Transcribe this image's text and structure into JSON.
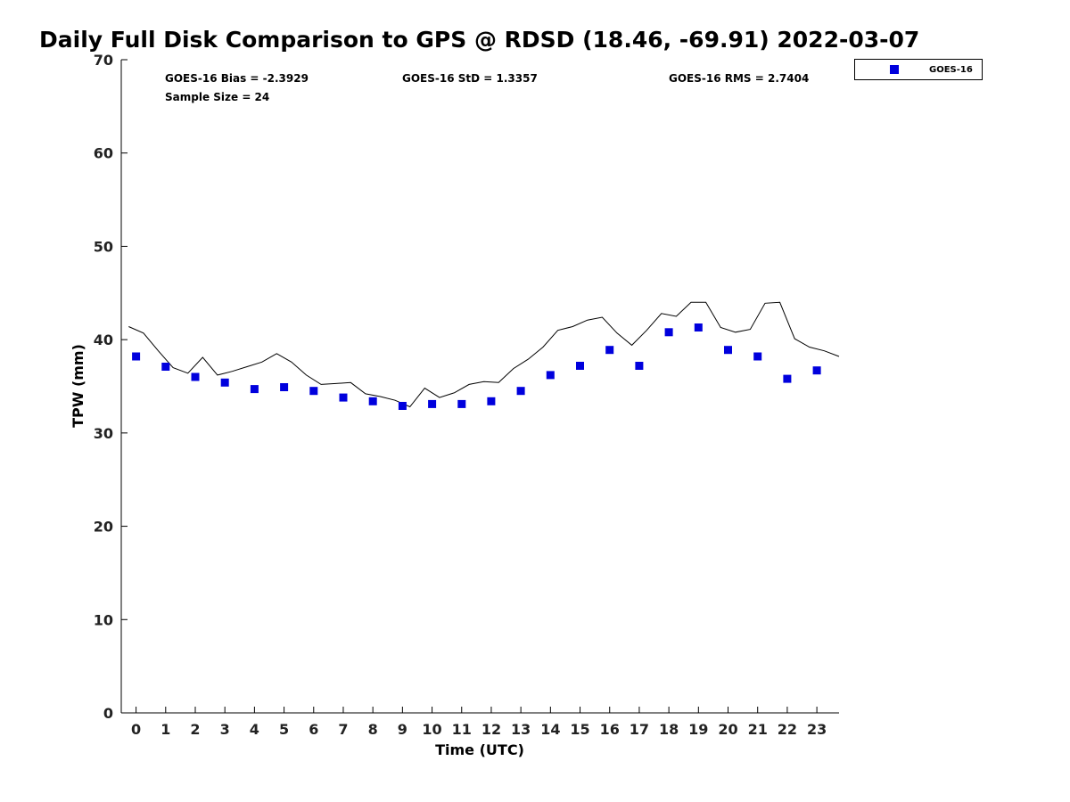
{
  "chart_data": {
    "type": "scatter",
    "title": "Daily Full Disk Comparison to GPS @ RDSD (18.46, -69.91) 2022-03-07",
    "xlabel": "Time (UTC)",
    "ylabel": "TPW (mm)",
    "xlim": [
      -0.5,
      23.75
    ],
    "ylim": [
      0,
      70
    ],
    "x_ticks": [
      0,
      1,
      2,
      3,
      4,
      5,
      6,
      7,
      8,
      9,
      10,
      11,
      12,
      13,
      14,
      15,
      16,
      17,
      18,
      19,
      20,
      21,
      22,
      23
    ],
    "y_ticks": [
      0,
      10,
      20,
      30,
      40,
      50,
      60,
      70
    ],
    "grid": false,
    "legend": {
      "placement": "top-right, outside plot",
      "entries": [
        "GOES-16"
      ]
    },
    "stats": [
      {
        "text": "GOES-16 Bias = -2.3929"
      },
      {
        "text": "GOES-16 StD = 1.3357"
      },
      {
        "text": "GOES-16 RMS = 2.7404"
      },
      {
        "text": "Sample Size = 24"
      }
    ],
    "series": [
      {
        "name": "GOES-16",
        "style": "square-markers",
        "color": "#0000dd",
        "x": [
          0,
          1,
          2,
          3,
          4,
          5,
          6,
          7,
          8,
          9,
          10,
          11,
          12,
          13,
          14,
          15,
          16,
          17,
          18,
          19,
          20,
          21,
          22,
          23
        ],
        "y": [
          38.2,
          37.1,
          36.0,
          35.4,
          34.7,
          34.9,
          34.5,
          33.8,
          33.4,
          32.9,
          33.1,
          33.1,
          33.4,
          34.5,
          36.2,
          37.2,
          38.9,
          37.2,
          40.8,
          41.3,
          38.9,
          38.2,
          35.8,
          36.7
        ]
      },
      {
        "style": "line",
        "color": "#000000",
        "x": [
          -0.25,
          0.25,
          0.75,
          1.25,
          1.75,
          2.25,
          2.75,
          3.25,
          3.75,
          4.25,
          4.75,
          5.25,
          5.75,
          6.25,
          6.75,
          7.25,
          7.75,
          8.25,
          8.75,
          9.25,
          9.75,
          10.25,
          10.75,
          11.25,
          11.75,
          12.25,
          12.75,
          13.25,
          13.75,
          14.25,
          14.75,
          15.25,
          15.75,
          16.25,
          16.75,
          17.25,
          17.75,
          18.25,
          18.75,
          19.25,
          19.75,
          20.25,
          20.75,
          21.25,
          21.75,
          22.25,
          22.75,
          23.25,
          23.75
        ],
        "y": [
          41.4,
          40.7,
          38.8,
          37.0,
          36.4,
          38.1,
          36.2,
          36.6,
          37.1,
          37.6,
          38.5,
          37.6,
          36.2,
          35.2,
          35.3,
          35.4,
          34.2,
          33.9,
          33.5,
          32.8,
          34.8,
          33.8,
          34.3,
          35.2,
          35.5,
          35.4,
          36.9,
          37.9,
          39.2,
          41.0,
          41.4,
          42.1,
          42.4,
          40.7,
          39.4,
          41.0,
          42.8,
          42.5,
          44.0,
          44.0,
          41.3,
          40.8,
          41.1,
          43.9,
          44.0,
          40.1,
          39.2,
          38.8,
          38.2
        ]
      }
    ]
  }
}
